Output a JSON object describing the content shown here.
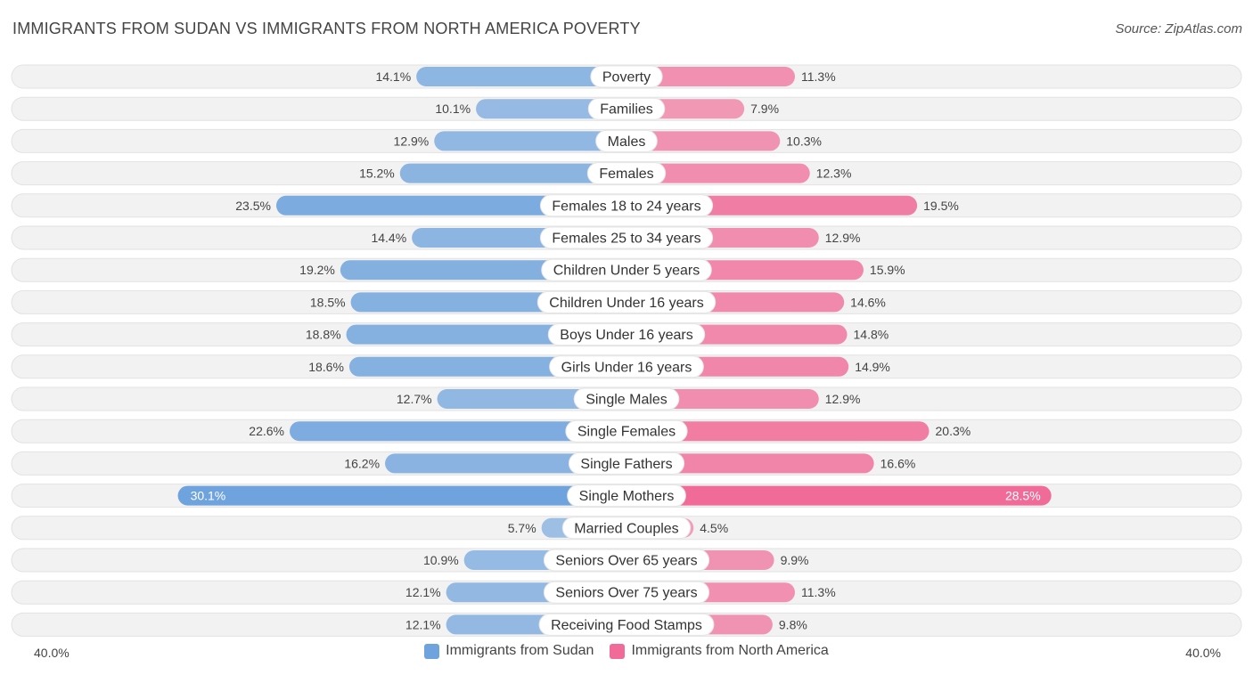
{
  "chart_data": {
    "type": "bar",
    "orientation": "horizontal-diverging",
    "title": "IMMIGRANTS FROM SUDAN VS IMMIGRANTS FROM NORTH AMERICA POVERTY",
    "source": "Source: ZipAtlas.com",
    "categories": [
      "Poverty",
      "Families",
      "Males",
      "Females",
      "Females 18 to 24 years",
      "Females 25 to 34 years",
      "Children Under 5 years",
      "Children Under 16 years",
      "Boys Under 16 years",
      "Girls Under 16 years",
      "Single Males",
      "Single Females",
      "Single Fathers",
      "Single Mothers",
      "Married Couples",
      "Seniors Over 65 years",
      "Seniors Over 75 years",
      "Receiving Food Stamps"
    ],
    "series": [
      {
        "name": "Immigrants from Sudan",
        "color": "#6fa3dd",
        "values": [
          14.1,
          10.1,
          12.9,
          15.2,
          23.5,
          14.4,
          19.2,
          18.5,
          18.8,
          18.6,
          12.7,
          22.6,
          16.2,
          30.1,
          5.7,
          10.9,
          12.1,
          12.1
        ],
        "labels": [
          "14.1%",
          "10.1%",
          "12.9%",
          "15.2%",
          "23.5%",
          "14.4%",
          "19.2%",
          "18.5%",
          "18.8%",
          "18.6%",
          "12.7%",
          "22.6%",
          "16.2%",
          "30.1%",
          "5.7%",
          "10.9%",
          "12.1%",
          "12.1%"
        ]
      },
      {
        "name": "Immigrants from North America",
        "color": "#f06b97",
        "values": [
          11.3,
          7.9,
          10.3,
          12.3,
          19.5,
          12.9,
          15.9,
          14.6,
          14.8,
          14.9,
          12.9,
          20.3,
          16.6,
          28.5,
          4.5,
          9.9,
          11.3,
          9.8
        ],
        "labels": [
          "11.3%",
          "7.9%",
          "10.3%",
          "12.3%",
          "19.5%",
          "12.9%",
          "15.9%",
          "14.6%",
          "14.8%",
          "14.9%",
          "12.9%",
          "20.3%",
          "16.6%",
          "28.5%",
          "4.5%",
          "9.9%",
          "11.3%",
          "9.8%"
        ]
      }
    ],
    "xlim": [
      -40,
      40
    ],
    "axis_labels": {
      "left": "40.0%",
      "right": "40.0%"
    },
    "legend_position": "bottom-center",
    "grid": false
  }
}
